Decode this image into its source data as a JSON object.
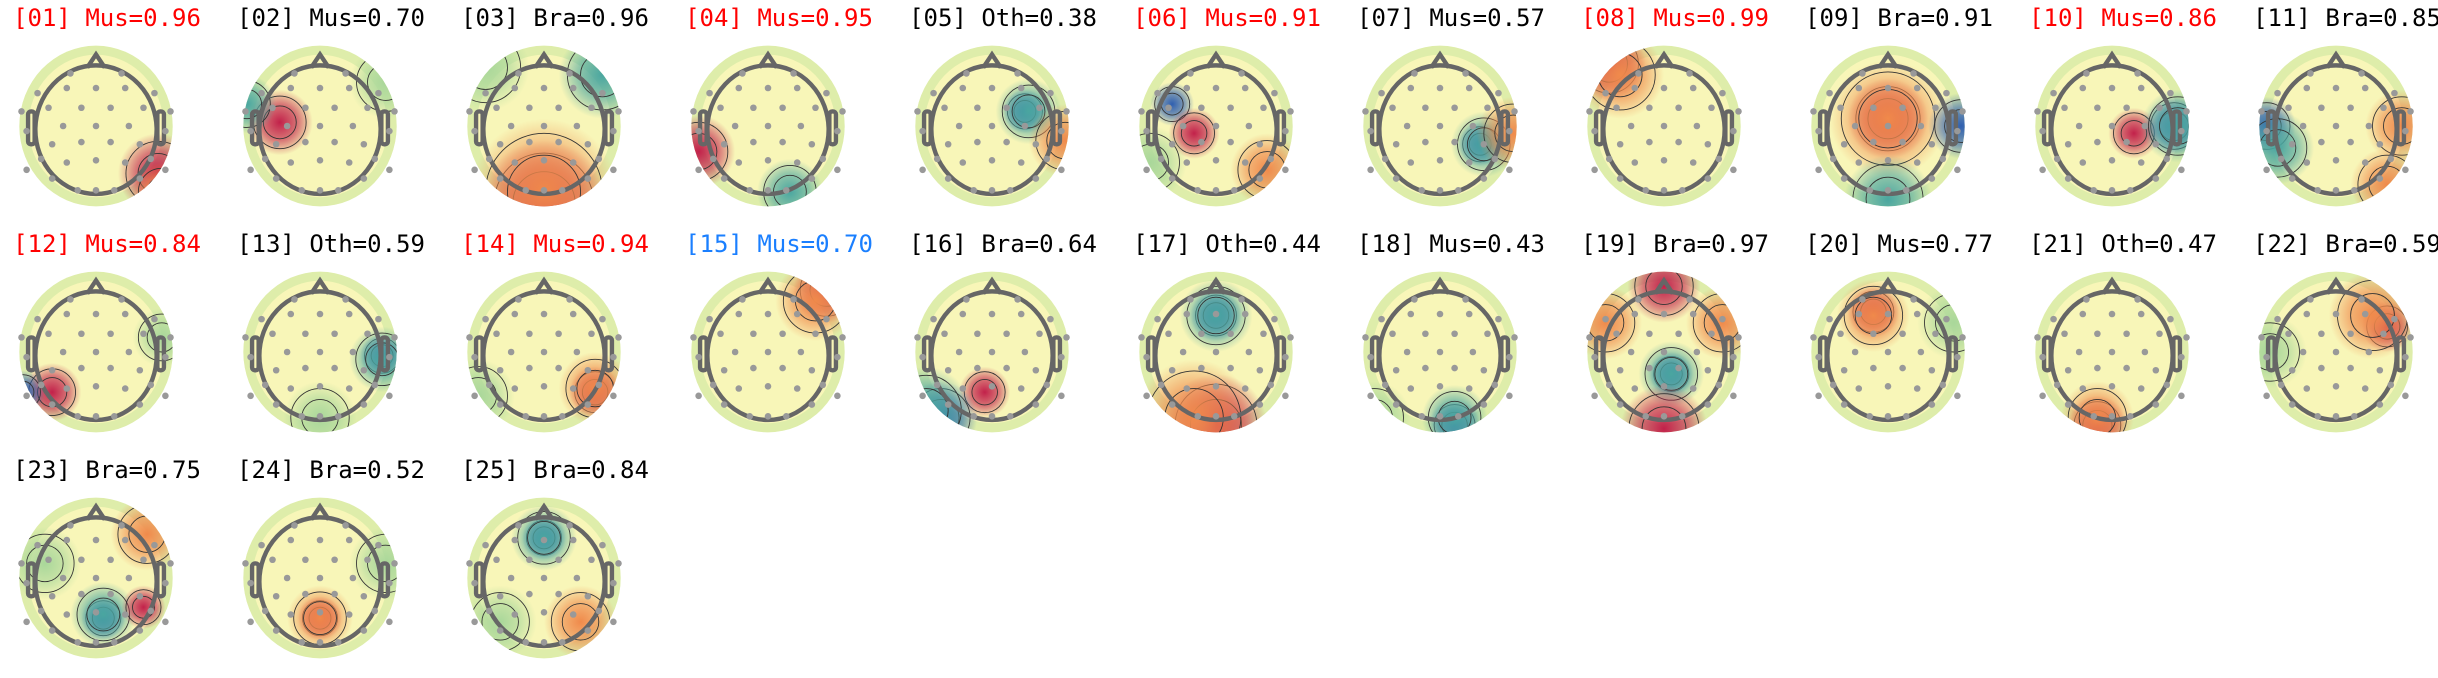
{
  "colors": {
    "flagged": "#ff0000",
    "normal": "#000000",
    "highlight": "#1a7fff"
  },
  "components": [
    {
      "label": "[01] Mus=0.96",
      "status": "flagged"
    },
    {
      "label": "[02] Mus=0.70",
      "status": "normal"
    },
    {
      "label": "[03] Bra=0.96",
      "status": "normal"
    },
    {
      "label": "[04] Mus=0.95",
      "status": "flagged"
    },
    {
      "label": "[05] Oth=0.38",
      "status": "normal"
    },
    {
      "label": "[06] Mus=0.91",
      "status": "flagged"
    },
    {
      "label": "[07] Mus=0.57",
      "status": "normal"
    },
    {
      "label": "[08] Mus=0.99",
      "status": "flagged"
    },
    {
      "label": "[09] Bra=0.91",
      "status": "normal"
    },
    {
      "label": "[10] Mus=0.86",
      "status": "flagged"
    },
    {
      "label": "[11] Bra=0.85",
      "status": "normal"
    },
    {
      "label": "[12] Mus=0.84",
      "status": "flagged"
    },
    {
      "label": "[13] Oth=0.59",
      "status": "normal"
    },
    {
      "label": "[14] Mus=0.94",
      "status": "flagged"
    },
    {
      "label": "[15] Mus=0.70",
      "status": "highlight"
    },
    {
      "label": "[16] Bra=0.64",
      "status": "normal"
    },
    {
      "label": "[17] Oth=0.44",
      "status": "normal"
    },
    {
      "label": "[18] Mus=0.43",
      "status": "normal"
    },
    {
      "label": "[19] Bra=0.97",
      "status": "normal"
    },
    {
      "label": "[20] Mus=0.77",
      "status": "normal"
    },
    {
      "label": "[21] Oth=0.47",
      "status": "normal"
    },
    {
      "label": "[22] Bra=0.59",
      "status": "normal"
    },
    {
      "label": "[23] Bra=0.75",
      "status": "normal"
    },
    {
      "label": "[24] Bra=0.52",
      "status": "normal"
    },
    {
      "label": "[25] Bra=0.84",
      "status": "normal"
    }
  ]
}
